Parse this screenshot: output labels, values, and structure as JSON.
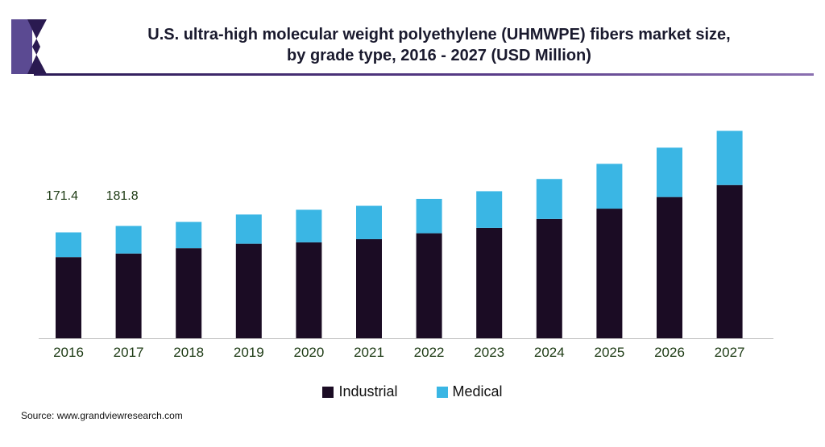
{
  "header": {
    "title_line1": "U.S. ultra-high molecular weight polyethylene (UHMWPE) fibers market size,",
    "title_line2": "by grade type, 2016 - 2027 (USD Million)"
  },
  "colors": {
    "industrial": "#1b0c24",
    "medical": "#3ab6e4",
    "axis": "#bfbfbf",
    "label": "#1c3a13",
    "logo_dark": "#2a1a50",
    "logo_mid": "#5b4a92"
  },
  "chart_data": {
    "type": "bar",
    "stacked": true,
    "categories": [
      "2016",
      "2017",
      "2018",
      "2019",
      "2020",
      "2021",
      "2022",
      "2023",
      "2024",
      "2025",
      "2026",
      "2027"
    ],
    "series": [
      {
        "name": "Industrial",
        "values": [
          131.4,
          137.2,
          145.8,
          153.0,
          155.3,
          160.4,
          170.0,
          178.7,
          193.1,
          209.8,
          228.6,
          248.0
        ]
      },
      {
        "name": "Medical",
        "values": [
          40.0,
          44.6,
          42.5,
          47.3,
          52.7,
          54.0,
          55.6,
          59.3,
          64.7,
          72.5,
          79.9,
          87.7
        ]
      }
    ],
    "data_labels": [
      {
        "category": "2016",
        "text": "171.4"
      },
      {
        "category": "2017",
        "text": "181.8"
      }
    ],
    "ylim": [
      0,
      365
    ],
    "grid": false,
    "legend_position": "bottom"
  },
  "legend": {
    "items": [
      "Industrial",
      "Medical"
    ]
  },
  "footer": {
    "source": "Source: www.grandviewresearch.com"
  }
}
